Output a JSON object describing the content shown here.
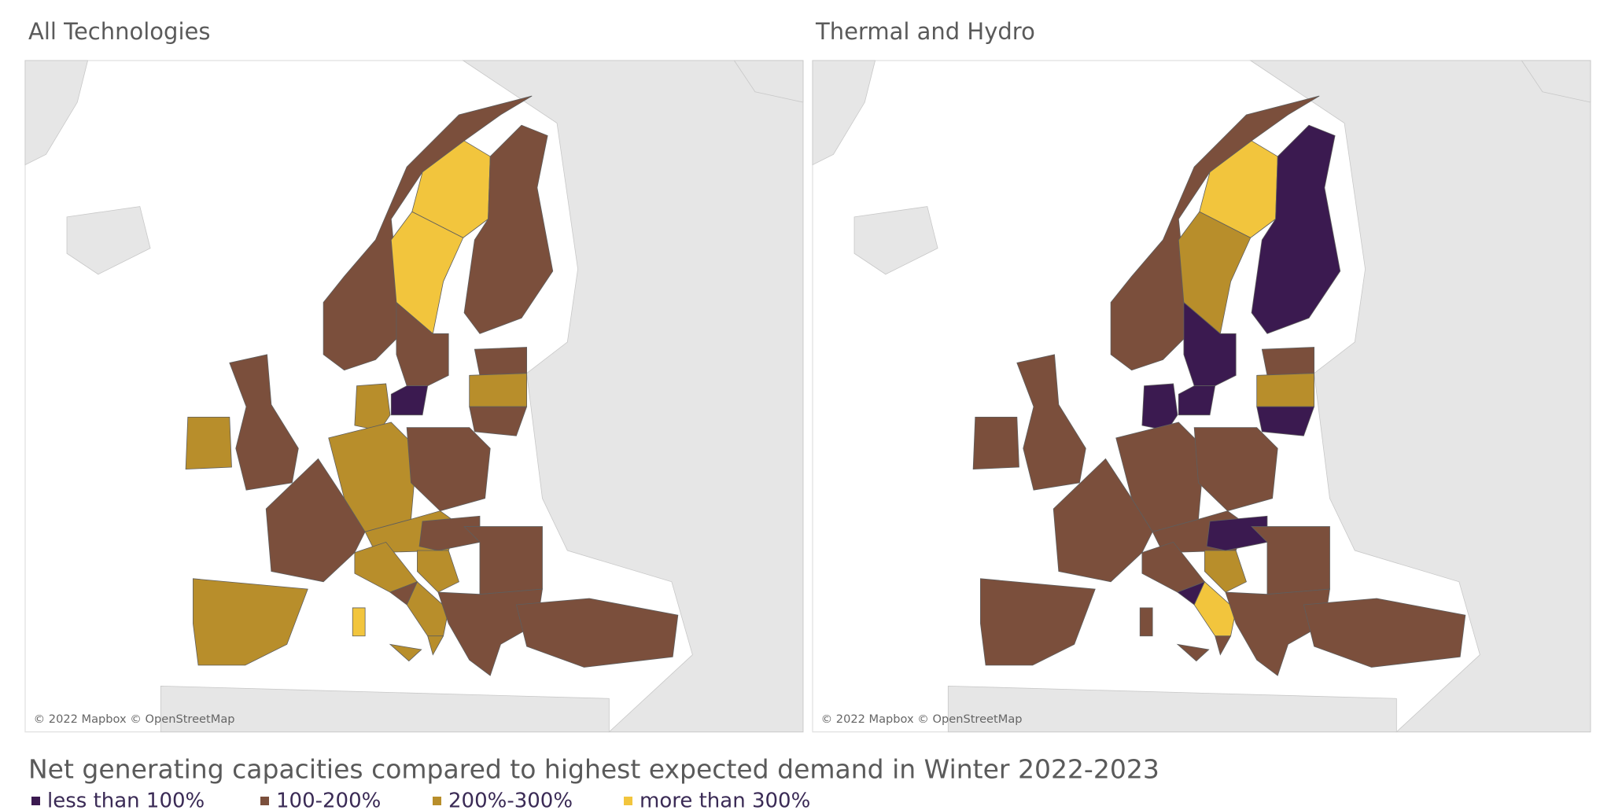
{
  "panels": [
    {
      "title": "All Technologies",
      "attribution": "© 2022 Mapbox © OpenStreetMap",
      "region_classes": [
        1,
        3,
        3,
        1,
        0,
        1,
        2,
        1,
        2,
        1,
        2,
        1,
        1,
        2,
        2,
        1,
        1,
        2,
        2,
        3,
        2,
        2,
        1,
        2,
        1,
        1,
        1,
        2
      ]
    },
    {
      "title": "Thermal and Hydro",
      "attribution": "© 2022 Mapbox © OpenStreetMap",
      "region_classes": [
        1,
        3,
        2,
        0,
        0,
        0,
        0,
        1,
        2,
        0,
        1,
        1,
        1,
        1,
        1,
        1,
        0,
        1,
        3,
        1,
        1,
        1,
        0,
        2,
        1,
        1,
        1,
        1
      ]
    }
  ],
  "legend": {
    "title": "Net generating capacities compared to highest expected demand in Winter 2022-2023",
    "items": [
      {
        "label": "less than 100%",
        "color": "#3b1a50"
      },
      {
        "label": "100-200%",
        "color": "#7b4f3c"
      },
      {
        "label": "200%-300%",
        "color": "#b88e2b"
      },
      {
        "label": "more than 300%",
        "color": "#f2c53d"
      }
    ]
  }
}
